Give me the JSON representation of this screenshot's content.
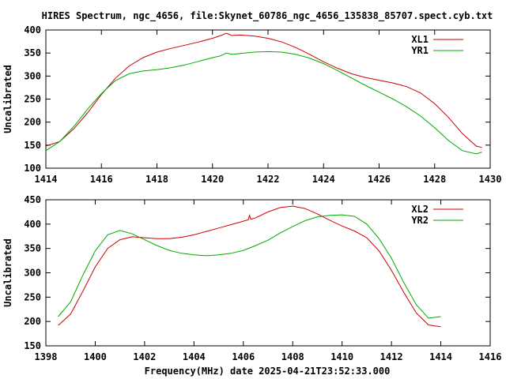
{
  "title": "HIRES Spectrum, ngc_4656, file:Skynet_60786_ngc_4656_135838_85707.spect.cyb.txt",
  "xlabel": "Frequency(MHz) date 2025-04-21T23:52:33.000",
  "colors": {
    "red": "#cc0000",
    "green": "#00aa00"
  },
  "chart_data": [
    {
      "type": "line",
      "ylabel": "Uncalibrated",
      "xlim": [
        1414,
        1430
      ],
      "ylim": [
        100,
        400
      ],
      "xticks": [
        1414,
        1416,
        1418,
        1420,
        1422,
        1424,
        1426,
        1428,
        1430
      ],
      "yticks": [
        100,
        150,
        200,
        250,
        300,
        350,
        400
      ],
      "legend_position": "top-right",
      "series": [
        {
          "name": "XL1",
          "color": "#cc0000",
          "points": [
            [
              1414,
              148
            ],
            [
              1414.5,
              158
            ],
            [
              1415,
              185
            ],
            [
              1415.5,
              220
            ],
            [
              1416,
              260
            ],
            [
              1416.5,
              295
            ],
            [
              1417,
              322
            ],
            [
              1417.5,
              340
            ],
            [
              1418,
              352
            ],
            [
              1418.5,
              360
            ],
            [
              1419,
              367
            ],
            [
              1419.5,
              374
            ],
            [
              1420,
              382
            ],
            [
              1420.3,
              388
            ],
            [
              1420.5,
              393
            ],
            [
              1420.7,
              388
            ],
            [
              1421,
              389
            ],
            [
              1421.5,
              387
            ],
            [
              1422,
              382
            ],
            [
              1422.5,
              374
            ],
            [
              1423,
              362
            ],
            [
              1423.5,
              347
            ],
            [
              1424,
              331
            ],
            [
              1424.5,
              317
            ],
            [
              1425,
              305
            ],
            [
              1425.5,
              297
            ],
            [
              1426,
              291
            ],
            [
              1426.5,
              285
            ],
            [
              1427,
              277
            ],
            [
              1427.5,
              263
            ],
            [
              1428,
              240
            ],
            [
              1428.5,
              210
            ],
            [
              1429,
              175
            ],
            [
              1429.5,
              148
            ],
            [
              1429.7,
              145
            ]
          ]
        },
        {
          "name": "YR1",
          "color": "#00aa00",
          "points": [
            [
              1414,
              138
            ],
            [
              1414.5,
              158
            ],
            [
              1415,
              190
            ],
            [
              1415.5,
              228
            ],
            [
              1416,
              262
            ],
            [
              1416.5,
              290
            ],
            [
              1417,
              305
            ],
            [
              1417.5,
              311
            ],
            [
              1418,
              314
            ],
            [
              1418.5,
              318
            ],
            [
              1419,
              324
            ],
            [
              1419.5,
              332
            ],
            [
              1420,
              340
            ],
            [
              1420.3,
              344
            ],
            [
              1420.5,
              350
            ],
            [
              1420.7,
              347
            ],
            [
              1421,
              349
            ],
            [
              1421.5,
              352
            ],
            [
              1422,
              353
            ],
            [
              1422.5,
              352
            ],
            [
              1423,
              347
            ],
            [
              1423.5,
              339
            ],
            [
              1424,
              327
            ],
            [
              1424.5,
              312
            ],
            [
              1425,
              296
            ],
            [
              1425.5,
              280
            ],
            [
              1426,
              265
            ],
            [
              1426.5,
              250
            ],
            [
              1427,
              233
            ],
            [
              1427.5,
              213
            ],
            [
              1428,
              188
            ],
            [
              1428.5,
              160
            ],
            [
              1429,
              138
            ],
            [
              1429.5,
              131
            ],
            [
              1429.7,
              135
            ]
          ]
        }
      ]
    },
    {
      "type": "line",
      "ylabel": "Uncalibrated",
      "xlim": [
        1398,
        1416
      ],
      "ylim": [
        150,
        450
      ],
      "xticks": [
        1398,
        1400,
        1402,
        1404,
        1406,
        1408,
        1410,
        1412,
        1414,
        1416
      ],
      "yticks": [
        150,
        200,
        250,
        300,
        350,
        400,
        450
      ],
      "legend_position": "top-right",
      "series": [
        {
          "name": "XL2",
          "color": "#cc0000",
          "points": [
            [
              1398.5,
              192
            ],
            [
              1399,
              215
            ],
            [
              1399.5,
              262
            ],
            [
              1400,
              312
            ],
            [
              1400.5,
              350
            ],
            [
              1401,
              368
            ],
            [
              1401.5,
              374
            ],
            [
              1402,
              372
            ],
            [
              1402.5,
              370
            ],
            [
              1403,
              370
            ],
            [
              1403.5,
              373
            ],
            [
              1404,
              378
            ],
            [
              1404.5,
              385
            ],
            [
              1405,
              392
            ],
            [
              1405.5,
              399
            ],
            [
              1406,
              406
            ],
            [
              1406.2,
              409
            ],
            [
              1406.25,
              418
            ],
            [
              1406.3,
              410
            ],
            [
              1406.5,
              413
            ],
            [
              1407,
              425
            ],
            [
              1407.5,
              434
            ],
            [
              1408,
              437
            ],
            [
              1408.5,
              432
            ],
            [
              1409,
              421
            ],
            [
              1409.5,
              408
            ],
            [
              1410,
              396
            ],
            [
              1410.5,
              386
            ],
            [
              1411,
              372
            ],
            [
              1411.5,
              345
            ],
            [
              1412,
              305
            ],
            [
              1412.5,
              260
            ],
            [
              1413,
              218
            ],
            [
              1413.5,
              193
            ],
            [
              1414,
              189
            ]
          ]
        },
        {
          "name": "YR2",
          "color": "#00aa00",
          "points": [
            [
              1398.5,
              210
            ],
            [
              1399,
              240
            ],
            [
              1399.5,
              295
            ],
            [
              1400,
              345
            ],
            [
              1400.5,
              378
            ],
            [
              1401,
              387
            ],
            [
              1401.5,
              380
            ],
            [
              1402,
              368
            ],
            [
              1402.5,
              356
            ],
            [
              1403,
              346
            ],
            [
              1403.5,
              340
            ],
            [
              1404,
              337
            ],
            [
              1404.5,
              335
            ],
            [
              1405,
              337
            ],
            [
              1405.5,
              340
            ],
            [
              1406,
              346
            ],
            [
              1406.5,
              356
            ],
            [
              1407,
              367
            ],
            [
              1407.5,
              382
            ],
            [
              1408,
              395
            ],
            [
              1408.5,
              407
            ],
            [
              1409,
              415
            ],
            [
              1409.5,
              418
            ],
            [
              1410,
              419
            ],
            [
              1410.5,
              416
            ],
            [
              1411,
              400
            ],
            [
              1411.5,
              370
            ],
            [
              1412,
              330
            ],
            [
              1412.5,
              280
            ],
            [
              1413,
              235
            ],
            [
              1413.5,
              207
            ],
            [
              1414,
              210
            ]
          ]
        }
      ]
    }
  ]
}
